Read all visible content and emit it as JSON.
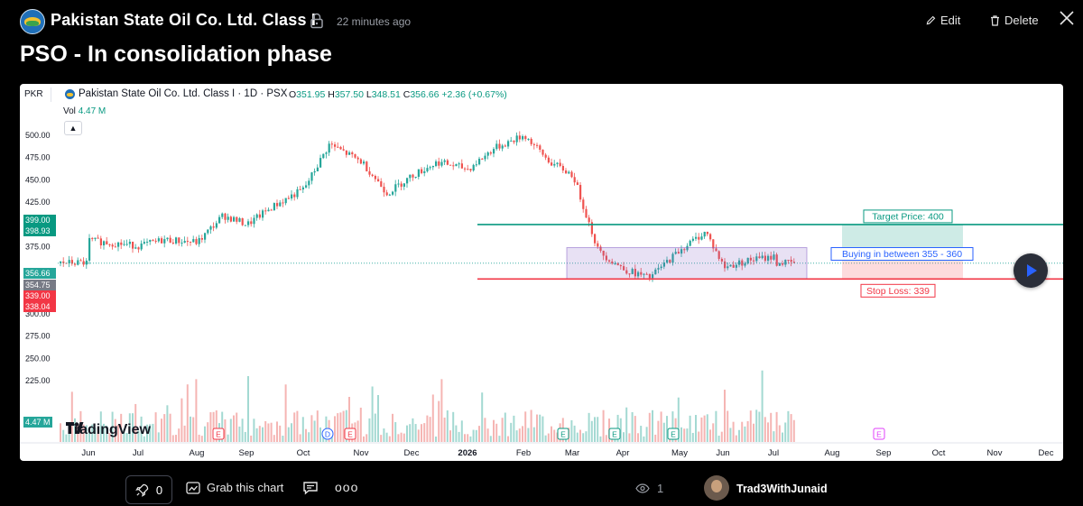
{
  "header": {
    "symbol_name": "Pakistan State Oil Co. Ltd. Class I",
    "time_ago": "22 minutes ago",
    "edit_label": "Edit",
    "delete_label": "Delete",
    "idea_title": "PSO - In consolidation phase"
  },
  "chart": {
    "currency": "PKR",
    "title": "Pakistan State Oil Co. Ltd. Class I · 1D · PSX",
    "ohlc": {
      "o_label": "O",
      "o": "351.95",
      "h_label": "H",
      "h": "357.50",
      "l_label": "L",
      "l": "348.51",
      "c_label": "C",
      "c": "356.66",
      "change": "+2.36 (+0.67%)"
    },
    "vol_label": "Vol",
    "vol_value": "4.47 M",
    "collapse_icon": "chevron-up-icon",
    "brand": "TradingView",
    "colors": {
      "up": "#26a69a",
      "down": "#ef5350",
      "target": "#089981",
      "stop": "#f23645",
      "range": "#7e57c2"
    }
  },
  "chart_data": {
    "type": "candlestick",
    "x_labels": [
      "Jun",
      "Jul",
      "Aug",
      "Sep",
      "Oct",
      "Nov",
      "Dec",
      "2026",
      "Feb",
      "Mar",
      "Apr",
      "May",
      "Jun",
      "Jul",
      "Aug",
      "Sep",
      "Oct",
      "Nov",
      "Dec"
    ],
    "y_ticks": [
      "500.00",
      "475.00",
      "450.00",
      "425.00",
      "375.00",
      "300.00",
      "275.00",
      "250.00",
      "225.00"
    ],
    "price_badges": [
      {
        "text": "399.00",
        "value": 399.0,
        "color": "#089981"
      },
      {
        "text": "398.93",
        "value": 398.93,
        "color": "#089981"
      },
      {
        "text": "356.66",
        "value": 356.66,
        "color": "#26a69a"
      },
      {
        "text": "354.75",
        "value": 354.75,
        "color": "#787b86"
      },
      {
        "text": "339.00",
        "value": 339.0,
        "color": "#f23645"
      },
      {
        "text": "338.04",
        "value": 338.04,
        "color": "#f23645"
      }
    ],
    "volume_badge": "4.47 M",
    "ylim": [
      205,
      512
    ],
    "price_path": [
      [
        "Jun",
        382
      ],
      [
        "Jul",
        376
      ],
      [
        "Jul",
        383
      ],
      [
        "Aug",
        380
      ],
      [
        "Aug",
        410
      ],
      [
        "Sep",
        400
      ],
      [
        "Sep",
        420
      ],
      [
        "Oct",
        440
      ],
      [
        "Oct",
        490
      ],
      [
        "Nov",
        470
      ],
      [
        "Nov",
        435
      ],
      [
        "Dec",
        455
      ],
      [
        "Dec",
        470
      ],
      [
        "2026",
        462
      ],
      [
        "2026",
        485
      ],
      [
        "Feb",
        500
      ],
      [
        "Feb",
        470
      ],
      [
        "Mar",
        455
      ],
      [
        "Mar",
        370
      ],
      [
        "Apr",
        350
      ],
      [
        "Apr",
        340
      ],
      [
        "May",
        372
      ],
      [
        "May",
        392
      ],
      [
        "Jun",
        360
      ],
      [
        "Jun",
        352
      ],
      [
        "Jul",
        364
      ],
      [
        "Jul",
        357
      ]
    ],
    "annotations": [
      {
        "text": "Target Price: 400",
        "value": 400,
        "color": "#089981"
      },
      {
        "text": "Buying in between 355 - 360",
        "value_low": 355,
        "value_high": 360,
        "color": "#2962ff"
      },
      {
        "text": "Stop Loss: 339",
        "value": 339,
        "color": "#f23645"
      }
    ],
    "event_markers": [
      {
        "label": "E",
        "month": "Aug"
      },
      {
        "label": "D",
        "month": "Oct"
      },
      {
        "label": "E",
        "month": "Oct"
      },
      {
        "label": "E",
        "month": "Mar"
      },
      {
        "label": "E",
        "month": "Apr"
      },
      {
        "label": "E",
        "month": "Apr"
      },
      {
        "label": "E",
        "month": "Sep"
      }
    ]
  },
  "footer": {
    "boost_count": "0",
    "grab_label": "Grab this chart",
    "more_label": "ooo",
    "views": "1",
    "author": "Trad3WithJunaid"
  }
}
